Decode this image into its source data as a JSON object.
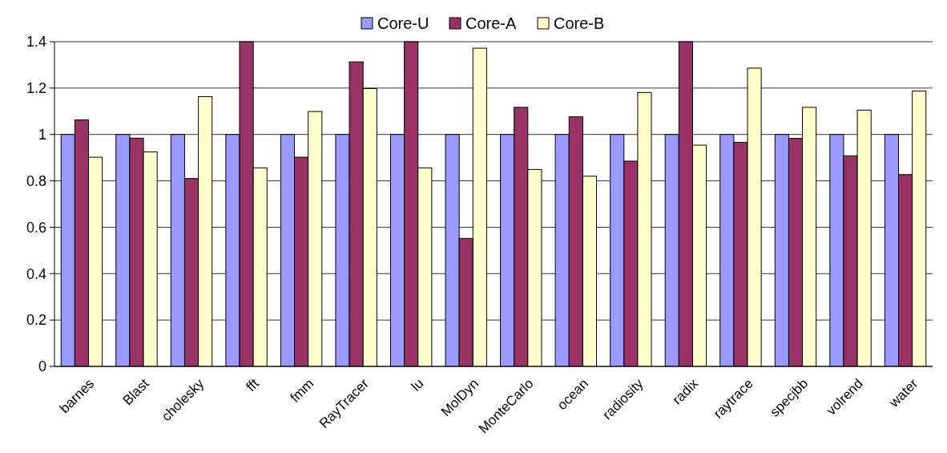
{
  "chart_data": {
    "type": "bar",
    "categories": [
      "barnes",
      "Blast",
      "cholesky",
      "fft",
      "fmm",
      "RayTracer",
      "lu",
      "MolDyn",
      "MonteCarlo",
      "ocean",
      "radiosity",
      "radix",
      "raytrace",
      "specjbb",
      "volrend",
      "water"
    ],
    "series": [
      {
        "name": "Core-U",
        "color": "#9999ff",
        "values": [
          1,
          1,
          1,
          1,
          1,
          1,
          1,
          1,
          1,
          1,
          1,
          1,
          1,
          1,
          1,
          1
        ]
      },
      {
        "name": "Core-A",
        "color": "#993366",
        "values": [
          1.063,
          0.984,
          0.81,
          1.4,
          0.902,
          1.313,
          1.4,
          0.552,
          1.117,
          1.076,
          0.885,
          1.4,
          0.966,
          0.983,
          0.908,
          0.827
        ]
      },
      {
        "name": "Core-B",
        "color": "#ffffcc",
        "values": [
          0.902,
          0.925,
          1.163,
          0.856,
          1.099,
          1.198,
          0.856,
          1.372,
          0.849,
          0.82,
          1.181,
          0.954,
          1.286,
          1.117,
          1.105,
          1.187
        ]
      }
    ],
    "ylim": [
      0,
      1.4
    ],
    "yticks": [
      0,
      0.2,
      0.4,
      0.6,
      0.8,
      1,
      1.2,
      1.4
    ],
    "grid": "y",
    "legend": "top"
  }
}
